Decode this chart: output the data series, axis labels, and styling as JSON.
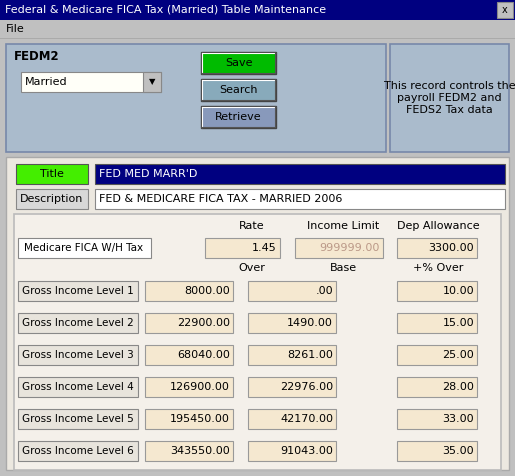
{
  "title_bar": "Federal & Medicare FICA Tax (Married) Table Maintenance",
  "title_bar_bg": "#000080",
  "title_bar_fg": "#ffffff",
  "menu_text": "File",
  "bg_color": "#c0c0c0",
  "panel_bg": "#aabbcc",
  "field_bg": "#f5e8d0",
  "title_label_bg": "#44ee00",
  "title_value_bg": "#000080",
  "title_value_fg": "#ffffff",
  "btn_save_bg": "#00bb00",
  "btn_search_bg": "#88aabb",
  "btn_retrieve_bg": "#8899bb",
  "fedm2_label": "FEDM2",
  "dropdown_text": "Married",
  "btn_save_text": "Save",
  "btn_search_text": "Search",
  "btn_retrieve_text": "Retrieve",
  "info_text": "This record controls the\npayroll FEDM2 and\nFEDS2 Tax data",
  "title_label_text": "Title",
  "title_value": "FED MED MARR'D",
  "desc_label_text": "Description",
  "desc_value": "FED & MEDICARE FICA TAX - MARRIED 2006",
  "col_headers_row1": [
    "Rate",
    "Income Limit",
    "Dep Allowance"
  ],
  "medicare_label": "Medicare FICA W/H Tax",
  "medicare_rate": "1.45",
  "medicare_income_limit": "999999.00",
  "medicare_income_limit_color": "#bb9988",
  "medicare_dep_allowance": "3300.00",
  "col_headers_row2": [
    "Over",
    "Base",
    "+% Over"
  ],
  "levels": [
    {
      "label": "Gross Income Level 1",
      "over": "8000.00",
      "base": ".00",
      "pct": "10.00"
    },
    {
      "label": "Gross Income Level 2",
      "over": "22900.00",
      "base": "1490.00",
      "pct": "15.00"
    },
    {
      "label": "Gross Income Level 3",
      "over": "68040.00",
      "base": "8261.00",
      "pct": "25.00"
    },
    {
      "label": "Gross Income Level 4",
      "over": "126900.00",
      "base": "22976.00",
      "pct": "28.00"
    },
    {
      "label": "Gross Income Level 5",
      "over": "195450.00",
      "base": "42170.00",
      "pct": "33.00"
    },
    {
      "label": "Gross Income Level 6",
      "over": "343550.00",
      "base": "91043.00",
      "pct": "35.00"
    }
  ]
}
